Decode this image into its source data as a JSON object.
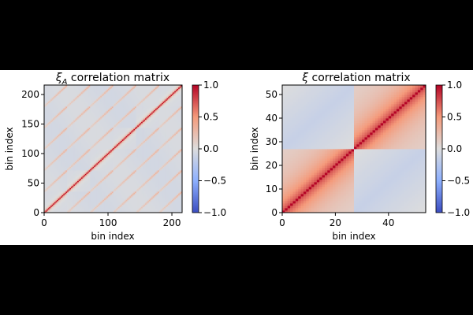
{
  "chart_data": [
    {
      "type": "heatmap",
      "title_symbol": "ξ",
      "title_subscript": "A",
      "title_rest": " correlation matrix",
      "xlabel": "bin index",
      "ylabel": "bin index",
      "n_bins": 216,
      "xlim": [
        0,
        216
      ],
      "ylim": [
        0,
        216
      ],
      "xticks": [
        0,
        100,
        200
      ],
      "yticks": [
        0,
        50,
        100,
        150,
        200
      ],
      "diagonal_value": 1.0,
      "block_size": 36,
      "colorbar": {
        "ticks": [
          "1.0",
          "0.5",
          "0.0",
          "−0.5",
          "−1.0"
        ],
        "values": [
          1.0,
          0.5,
          0.0,
          -0.5,
          -1.0
        ],
        "range": [
          -1.0,
          1.0
        ]
      },
      "colormap": "coolwarm"
    },
    {
      "type": "heatmap",
      "title_symbol": "ξ",
      "title_subscript": "",
      "title_rest": " correlation matrix",
      "xlabel": "bin index",
      "ylabel": "bin index",
      "n_bins": 54,
      "xlim": [
        0,
        54
      ],
      "ylim": [
        0,
        54
      ],
      "xticks": [
        0,
        20,
        40
      ],
      "yticks": [
        0,
        10,
        20,
        30,
        40,
        50
      ],
      "diagonal_value": 1.0,
      "block_size": 27,
      "colorbar": {
        "ticks": [
          "1.0",
          "0.5",
          "0.0",
          "−0.5",
          "−1.0"
        ],
        "values": [
          1.0,
          0.5,
          0.0,
          -0.5,
          -1.0
        ],
        "range": [
          -1.0,
          1.0
        ]
      },
      "colormap": "coolwarm"
    }
  ],
  "colors": {
    "high": "#b40426",
    "mid": "#dddddd",
    "low": "#3b4cc0"
  }
}
